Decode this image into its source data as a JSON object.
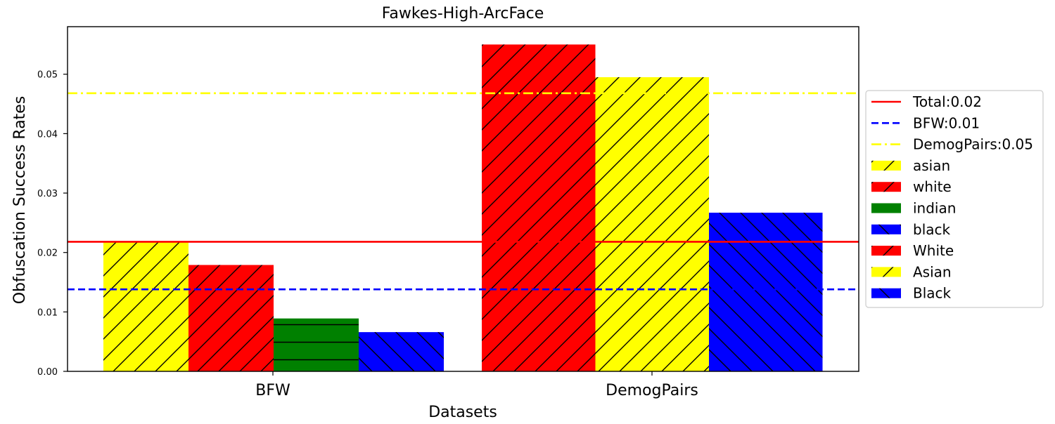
{
  "chart_data": {
    "type": "bar",
    "title": "Fawkes-High-ArcFace",
    "xlabel": "Datasets",
    "ylabel": "Obfuscation Success Rates",
    "ylim": [
      0,
      0.058
    ],
    "yticks": [
      0.0,
      0.01,
      0.02,
      0.03,
      0.04,
      0.05
    ],
    "ytick_labels": [
      "0.00",
      "0.01",
      "0.02",
      "0.03",
      "0.04",
      "0.05"
    ],
    "grid": false,
    "legend_position": "outside-right",
    "groups": [
      {
        "category": "BFW",
        "bars": [
          {
            "name": "asian",
            "value": 0.0217,
            "color": "#ffff00",
            "hatch": "forward"
          },
          {
            "name": "white",
            "value": 0.0179,
            "color": "#ff0000",
            "hatch": "forward"
          },
          {
            "name": "indian",
            "value": 0.0089,
            "color": "#008000",
            "hatch": "horizontal"
          },
          {
            "name": "black",
            "value": 0.0066,
            "color": "#0000ff",
            "hatch": "back"
          }
        ]
      },
      {
        "category": "DemogPairs",
        "bars": [
          {
            "name": "White",
            "value": 0.055,
            "color": "#ff0000",
            "hatch": "forward"
          },
          {
            "name": "Asian",
            "value": 0.0495,
            "color": "#ffff00",
            "hatch": "forward"
          },
          {
            "name": "Black",
            "value": 0.0267,
            "color": "#0000ff",
            "hatch": "back"
          }
        ]
      }
    ],
    "reference_lines": [
      {
        "name": "Total:0.02",
        "value": 0.0218,
        "color": "#ff0000",
        "style": "solid"
      },
      {
        "name": "BFW:0.01",
        "value": 0.0138,
        "color": "#0000ff",
        "style": "dashed"
      },
      {
        "name": "DemogPairs:0.05",
        "value": 0.0468,
        "color": "#ffff00",
        "style": "dashdot"
      }
    ],
    "legend": [
      {
        "label": "Total:0.02",
        "kind": "line",
        "color": "#ff0000",
        "style": "solid"
      },
      {
        "label": "BFW:0.01",
        "kind": "line",
        "color": "#0000ff",
        "style": "dashed"
      },
      {
        "label": "DemogPairs:0.05",
        "kind": "line",
        "color": "#ffff00",
        "style": "dashdot"
      },
      {
        "label": "asian",
        "kind": "patch",
        "color": "#ffff00",
        "hatch": "forward"
      },
      {
        "label": "white",
        "kind": "patch",
        "color": "#ff0000",
        "hatch": "forward"
      },
      {
        "label": "indian",
        "kind": "patch",
        "color": "#008000",
        "hatch": "horizontal"
      },
      {
        "label": "black",
        "kind": "patch",
        "color": "#0000ff",
        "hatch": "back"
      },
      {
        "label": "White",
        "kind": "patch",
        "color": "#ff0000",
        "hatch": "forward"
      },
      {
        "label": "Asian",
        "kind": "patch",
        "color": "#ffff00",
        "hatch": "forward"
      },
      {
        "label": "Black",
        "kind": "patch",
        "color": "#0000ff",
        "hatch": "back"
      }
    ]
  }
}
